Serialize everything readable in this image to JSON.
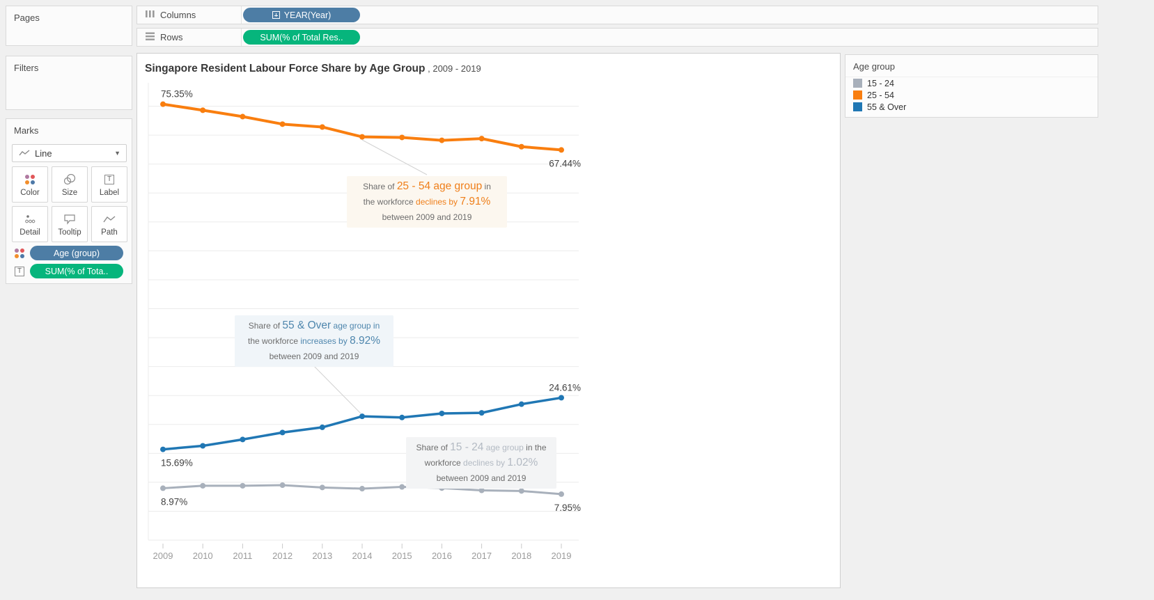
{
  "shelves": {
    "columns": {
      "label": "Columns",
      "pill": {
        "label": "YEAR(Year)",
        "color": "#4d7da5",
        "icon": "plus-box-icon"
      }
    },
    "rows": {
      "label": "Rows",
      "pill": {
        "label": "SUM(% of Total Res..",
        "color": "#06b57c"
      }
    }
  },
  "side_panels": {
    "pages": {
      "label": "Pages"
    },
    "filters": {
      "label": "Filters"
    },
    "marks": {
      "label": "Marks",
      "mark_type": "Line",
      "buttons": [
        {
          "label": "Color"
        },
        {
          "label": "Size"
        },
        {
          "label": "Label"
        },
        {
          "label": "Detail"
        },
        {
          "label": "Tooltip"
        },
        {
          "label": "Path"
        }
      ],
      "pills": [
        {
          "label": "Age (group)",
          "color": "#4d7da5",
          "icon": "color-dots-icon"
        },
        {
          "label": "SUM(% of Tota..",
          "color": "#06b57c",
          "icon": "text-label-icon"
        }
      ]
    }
  },
  "chart": {
    "title": "Singapore Resident Labour Force Share by Age Group",
    "title_suffix": " , 2009 - 2019"
  },
  "legend": {
    "title": "Age group",
    "items": [
      {
        "label": "15 - 24",
        "color": "#a8b0bb"
      },
      {
        "label": "25 - 54",
        "color": "#f97e0f"
      },
      {
        "label": "55 & Over",
        "color": "#2077b4"
      }
    ]
  },
  "chart_data": {
    "type": "line",
    "title": "Singapore Resident Labour Force Share by Age Group , 2009 - 2019",
    "x": [
      2009,
      2010,
      2011,
      2012,
      2013,
      2014,
      2015,
      2016,
      2017,
      2018,
      2019
    ],
    "xlabel": "",
    "ylabel": "",
    "ylim": [
      0,
      80
    ],
    "grid": true,
    "grid_step": 5,
    "legend_position": "top-right",
    "series": [
      {
        "name": "25 - 54",
        "color": "#f97e0f",
        "values": [
          75.35,
          74.3,
          73.2,
          71.9,
          71.4,
          69.7,
          69.6,
          69.1,
          69.4,
          68.0,
          67.44
        ],
        "endpoint_labels": [
          "75.35%",
          "67.44%"
        ],
        "label_pos": [
          "above",
          "below"
        ]
      },
      {
        "name": "55 & Over",
        "color": "#2077b4",
        "values": [
          15.69,
          16.3,
          17.4,
          18.6,
          19.5,
          21.4,
          21.2,
          21.9,
          22.0,
          23.5,
          24.61
        ],
        "endpoint_labels": [
          "15.69%",
          "24.61%"
        ],
        "label_pos": [
          "below",
          "above"
        ]
      },
      {
        "name": "15 - 24",
        "color": "#a8b0bb",
        "values": [
          8.97,
          9.4,
          9.4,
          9.5,
          9.1,
          8.9,
          9.2,
          9.0,
          8.6,
          8.5,
          7.95
        ],
        "endpoint_labels": [
          "8.97%",
          "7.95%"
        ],
        "label_pos": [
          "below",
          "below"
        ]
      }
    ]
  },
  "annotations": [
    {
      "id": "ann-25-54",
      "bg": "#fcf7ef",
      "accent": "#ef7f1a",
      "lines": [
        [
          {
            "t": "Share of ",
            "s": "n"
          },
          {
            "t": "25 - 54 age group",
            "s": "big"
          },
          {
            "t": " in",
            "s": "n"
          }
        ],
        [
          {
            "t": "the workforce ",
            "s": "n"
          },
          {
            "t": "declines by ",
            "s": "small"
          },
          {
            "t": "7.91%",
            "s": "big"
          }
        ],
        [
          {
            "t": "between 2009 and 2019",
            "s": "n"
          }
        ]
      ]
    },
    {
      "id": "ann-55-over",
      "bg": "#f0f5f9",
      "accent": "#4e86ad",
      "lines": [
        [
          {
            "t": "Share of ",
            "s": "n"
          },
          {
            "t": "55 & Over",
            "s": "big"
          },
          {
            "t": " age group in",
            "s": "small"
          }
        ],
        [
          {
            "t": "the workforce ",
            "s": "n"
          },
          {
            "t": "increases by ",
            "s": "small"
          },
          {
            "t": "8.92%",
            "s": "big"
          }
        ],
        [
          {
            "t": "between 2009 and 2019",
            "s": "n"
          }
        ]
      ]
    },
    {
      "id": "ann-15-24",
      "bg": "#f3f4f5",
      "accent": "#b3bac3",
      "lines": [
        [
          {
            "t": "Share of ",
            "s": "n"
          },
          {
            "t": "15 - 24",
            "s": "big"
          },
          {
            "t": " age group",
            "s": "small"
          },
          {
            "t": " in the",
            "s": "n"
          }
        ],
        [
          {
            "t": "workforce ",
            "s": "n"
          },
          {
            "t": "declines by ",
            "s": "small"
          },
          {
            "t": "1.02%",
            "s": "big"
          }
        ],
        [
          {
            "t": "between 2009 and 2019",
            "s": "n"
          }
        ]
      ]
    }
  ]
}
